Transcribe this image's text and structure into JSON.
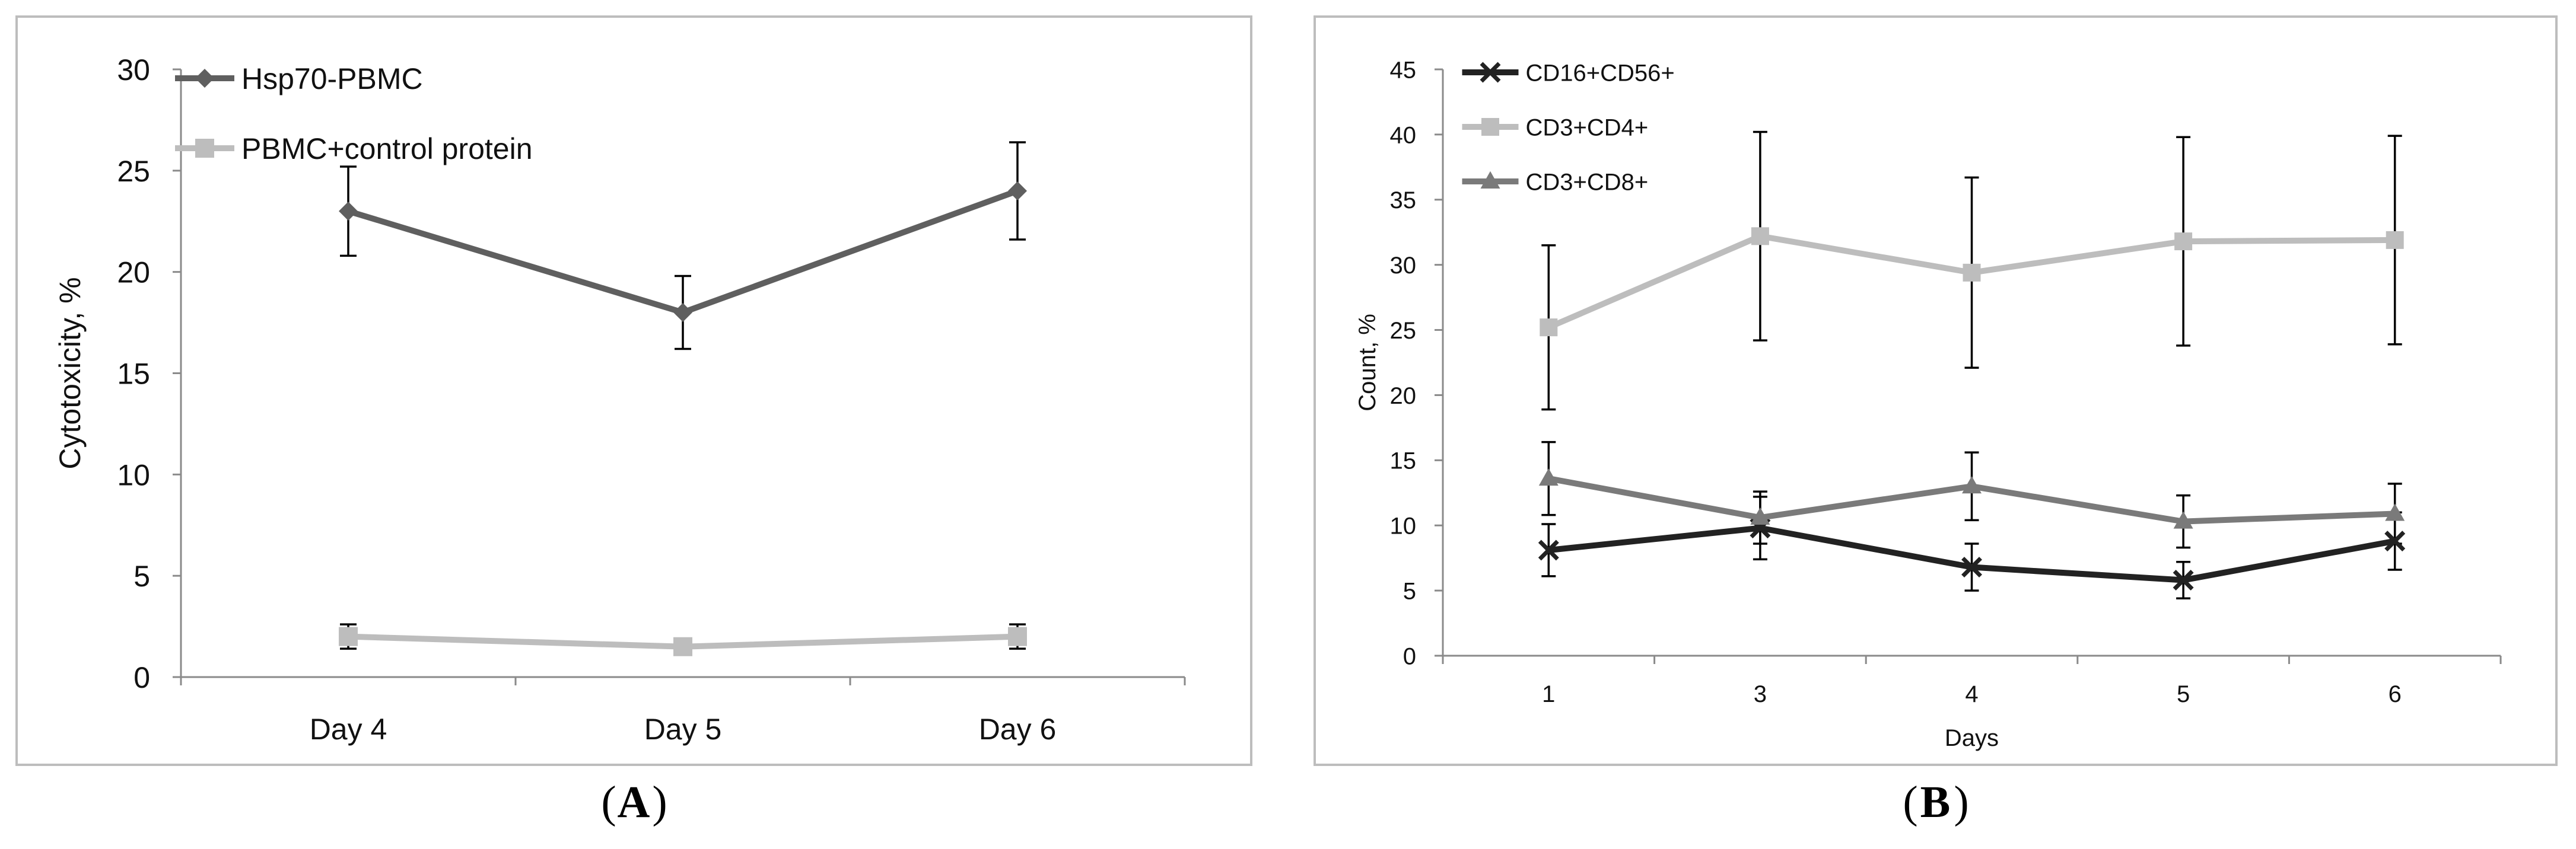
{
  "chart_data": [
    {
      "type": "line",
      "panel_label": "A",
      "title": "",
      "xlabel": "",
      "ylabel": "Cytotoxicity, %",
      "categories": [
        "Day 4",
        "Day 5",
        "Day 6"
      ],
      "ylim": [
        0,
        30
      ],
      "yticks": [
        0,
        5,
        10,
        15,
        20,
        25,
        30
      ],
      "ytick_labels": [
        "0",
        "5",
        "10",
        "15",
        "20",
        "25",
        "30"
      ],
      "grid": false,
      "legend_position": "top-left",
      "series": [
        {
          "name": "Hsp70-PBMC",
          "marker": "diamond",
          "color": "#5f5f5f",
          "values": [
            23.0,
            18.0,
            24.0
          ],
          "errors": [
            2.2,
            1.8,
            2.4
          ]
        },
        {
          "name": "PBMC+control protein",
          "marker": "square",
          "color": "#bdbdbd",
          "values": [
            2.0,
            1.5,
            2.0
          ],
          "errors": [
            0.6,
            0.3,
            0.6
          ]
        }
      ]
    },
    {
      "type": "line",
      "panel_label": "B",
      "title": "",
      "xlabel": "Days",
      "ylabel": "Count, %",
      "categories": [
        "1",
        "3",
        "4",
        "5",
        "6"
      ],
      "ylim": [
        0,
        45
      ],
      "yticks": [
        0,
        5,
        10,
        15,
        20,
        25,
        30,
        35,
        40,
        45
      ],
      "ytick_labels": [
        "0",
        "5",
        "10",
        "15",
        "20",
        "25",
        "30",
        "35",
        "40",
        "45"
      ],
      "grid": false,
      "legend_position": "top-left",
      "series": [
        {
          "name": "CD16+CD56+",
          "marker": "x",
          "color": "#222222",
          "values": [
            8.1,
            9.8,
            6.8,
            5.8,
            8.8
          ],
          "errors": [
            2.0,
            2.4,
            1.8,
            1.4,
            2.2
          ]
        },
        {
          "name": "CD3+CD4+",
          "marker": "square",
          "color": "#bdbdbd",
          "values": [
            25.2,
            32.2,
            29.4,
            31.8,
            31.9
          ],
          "errors": [
            6.3,
            8.0,
            7.3,
            8.0,
            8.0
          ]
        },
        {
          "name": "CD3+CD8+",
          "marker": "triangle",
          "color": "#7a7a7a",
          "values": [
            13.6,
            10.6,
            13.0,
            10.3,
            10.9
          ],
          "errors": [
            2.8,
            2.0,
            2.6,
            2.0,
            2.3
          ]
        }
      ]
    }
  ]
}
